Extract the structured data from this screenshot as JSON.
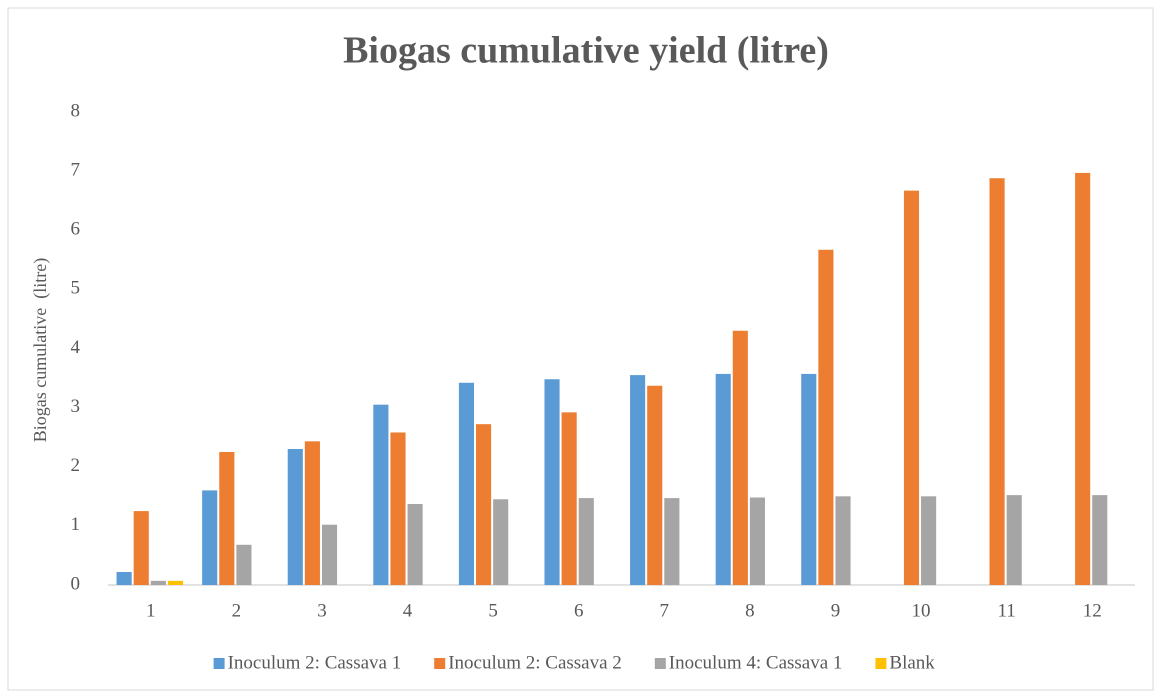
{
  "chart_data": {
    "type": "bar",
    "title": "Biogas cumulative yield (litre)",
    "y_label": "Biogas cumulative  (litre)",
    "categories": [
      "1",
      "2",
      "3",
      "4",
      "5",
      "6",
      "7",
      "8",
      "9",
      "10",
      "11",
      "12"
    ],
    "series": [
      {
        "name": "Inoculum 2: Cassava 1",
        "color": "#5b9bd5",
        "values": [
          0.22,
          1.6,
          2.3,
          3.05,
          3.42,
          3.48,
          3.55,
          3.57,
          3.57,
          null,
          null,
          null
        ]
      },
      {
        "name": "Inoculum 2: Cassava 2",
        "color": "#ed7d31",
        "values": [
          1.25,
          2.25,
          2.43,
          2.58,
          2.72,
          2.92,
          3.37,
          4.3,
          5.67,
          6.67,
          6.88,
          6.97
        ]
      },
      {
        "name": "Inoculum 4: Cassava 1",
        "color": "#a5a5a5",
        "values": [
          0.07,
          0.68,
          1.02,
          1.37,
          1.45,
          1.47,
          1.47,
          1.48,
          1.5,
          1.5,
          1.52,
          1.52
        ]
      },
      {
        "name": "Blank",
        "color": "#ffc000",
        "values": [
          0.07,
          null,
          null,
          null,
          null,
          null,
          null,
          null,
          null,
          null,
          null,
          null
        ]
      }
    ],
    "ylim": [
      0,
      8
    ],
    "yticks": [
      0,
      1,
      2,
      3,
      4,
      5,
      6,
      7,
      8
    ],
    "grid": false,
    "legend": "bottom"
  }
}
